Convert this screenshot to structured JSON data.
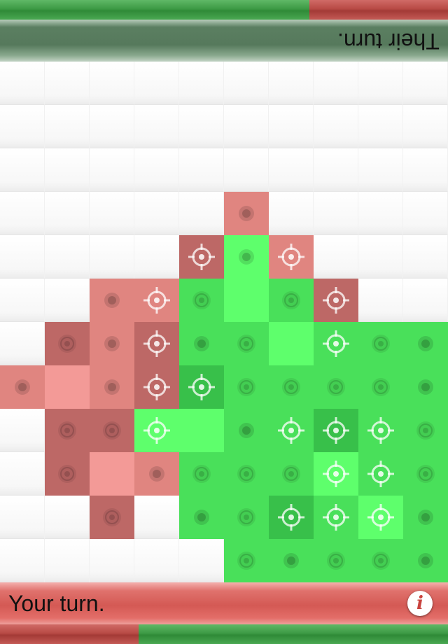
{
  "top_score": {
    "segments": [
      {
        "color": "green",
        "fraction": 0.69
      },
      {
        "color": "red",
        "fraction": 0.31
      }
    ]
  },
  "bottom_score": {
    "segments": [
      {
        "color": "red",
        "fraction": 0.31
      },
      {
        "color": "green",
        "fraction": 0.69
      }
    ]
  },
  "opponent": {
    "turn_text": "Their turn."
  },
  "player": {
    "turn_text": "Your turn."
  },
  "info_button": {
    "glyph": "i",
    "icon": "info-icon"
  },
  "legend": {
    "owner": {
      "E": "empty",
      "R": "red",
      "G": "green"
    },
    "shade": {
      "0": "light",
      "1": "medium",
      "2": "dark"
    },
    "marker": {
      "n": "none",
      "d": "dot",
      "r": "ring",
      "c": "crosshair"
    }
  },
  "colors": {
    "red": [
      "#f39a97",
      "#e08580",
      "#bd6866"
    ],
    "green": [
      "#5eff6c",
      "#49e05a",
      "#38c04a"
    ]
  },
  "board": {
    "cols": 10,
    "rows": 12,
    "grid": [
      [
        "E",
        "E",
        "E",
        "E",
        "E",
        "E",
        "E",
        "E",
        "E",
        "E"
      ],
      [
        "E",
        "E",
        "E",
        "E",
        "E",
        "E",
        "E",
        "E",
        "E",
        "E"
      ],
      [
        "E",
        "E",
        "E",
        "E",
        "E",
        "E",
        "E",
        "E",
        "E",
        "E"
      ],
      [
        "E",
        "E",
        "E",
        "E",
        "E",
        "R1d",
        "E",
        "E",
        "E",
        "E"
      ],
      [
        "E",
        "E",
        "E",
        "E",
        "R2c",
        "G0d",
        "R1c",
        "E",
        "E",
        "E"
      ],
      [
        "E",
        "E",
        "R1d",
        "R1c",
        "G1r",
        "G0n",
        "G1r",
        "R2c",
        "E",
        "E"
      ],
      [
        "E",
        "R2r",
        "R1d",
        "R2c",
        "G1d",
        "G1r",
        "G0n",
        "G1c",
        "G1r",
        "G1d"
      ],
      [
        "R1d",
        "R0n",
        "R1d",
        "R2c",
        "G2c",
        "G1r",
        "G1r",
        "G1r",
        "G1r",
        "G1d"
      ],
      [
        "E",
        "R2r",
        "R2r",
        "G0c",
        "G0n",
        "G1d",
        "G1c",
        "G2c",
        "G1c",
        "G1r"
      ],
      [
        "E",
        "R2r",
        "R0n",
        "R1d",
        "G1r",
        "G1r",
        "G1r",
        "G0c",
        "G1c",
        "G1r"
      ],
      [
        "E",
        "E",
        "R2r",
        "E",
        "G1d",
        "G1r",
        "G2c",
        "G1c",
        "G0c",
        "G1d"
      ],
      [
        "E",
        "E",
        "E",
        "E",
        "E",
        "G1r",
        "G1d",
        "G1r",
        "G1r",
        "G1d"
      ]
    ]
  }
}
